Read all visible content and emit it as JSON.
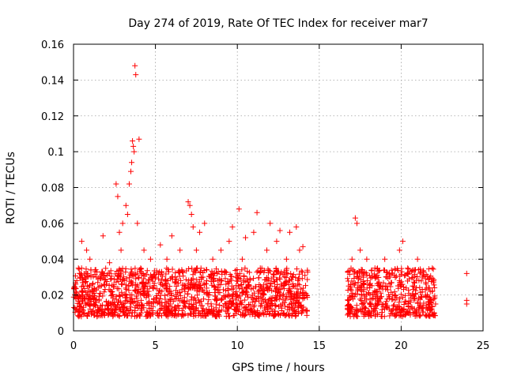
{
  "chart_data": {
    "type": "scatter",
    "title": "Day 274 of 2019, Rate Of TEC Index for receiver mar7",
    "xlabel": "GPS time / hours",
    "ylabel": "ROTI / TECUs",
    "xlim": [
      0,
      25
    ],
    "ylim": [
      0,
      0.16
    ],
    "x_ticks": [
      0,
      5,
      10,
      15,
      20,
      25
    ],
    "x_tick_labels": [
      "0",
      "5",
      "10",
      "15",
      "20",
      "25"
    ],
    "y_ticks": [
      0,
      0.02,
      0.04,
      0.06,
      0.08,
      0.1,
      0.12,
      0.14,
      0.16
    ],
    "y_tick_labels": [
      "0",
      "0.02",
      "0.04",
      "0.06",
      "0.08",
      "0.1",
      "0.12",
      "0.14",
      "0.16"
    ],
    "grid": true,
    "marker": "+",
    "color": "#ff0000",
    "series": [
      {
        "name": "ROTI",
        "note": "dense band of points, representative samples",
        "points": [
          [
            0.1,
            0.02
          ],
          [
            0.2,
            0.028
          ],
          [
            0.3,
            0.035
          ],
          [
            0.4,
            0.015
          ],
          [
            0.5,
            0.05
          ],
          [
            0.6,
            0.025
          ],
          [
            0.8,
            0.045
          ],
          [
            0.9,
            0.018
          ],
          [
            1.0,
            0.04
          ],
          [
            1.2,
            0.022
          ],
          [
            1.4,
            0.03
          ],
          [
            1.6,
            0.012
          ],
          [
            1.8,
            0.053
          ],
          [
            2.0,
            0.026
          ],
          [
            2.2,
            0.038
          ],
          [
            2.4,
            0.02
          ],
          [
            2.6,
            0.082
          ],
          [
            2.7,
            0.075
          ],
          [
            2.8,
            0.055
          ],
          [
            2.9,
            0.045
          ],
          [
            3.0,
            0.06
          ],
          [
            3.1,
            0.028
          ],
          [
            3.2,
            0.07
          ],
          [
            3.3,
            0.065
          ],
          [
            3.4,
            0.082
          ],
          [
            3.5,
            0.089
          ],
          [
            3.55,
            0.094
          ],
          [
            3.6,
            0.106
          ],
          [
            3.65,
            0.103
          ],
          [
            3.7,
            0.1
          ],
          [
            3.75,
            0.148
          ],
          [
            3.8,
            0.143
          ],
          [
            3.9,
            0.06
          ],
          [
            4.0,
            0.107
          ],
          [
            4.1,
            0.035
          ],
          [
            4.3,
            0.045
          ],
          [
            4.5,
            0.022
          ],
          [
            4.7,
            0.04
          ],
          [
            4.9,
            0.018
          ],
          [
            5.0,
            0.03
          ],
          [
            5.3,
            0.048
          ],
          [
            5.5,
            0.025
          ],
          [
            5.7,
            0.04
          ],
          [
            5.9,
            0.015
          ],
          [
            6.0,
            0.053
          ],
          [
            6.2,
            0.03
          ],
          [
            6.5,
            0.045
          ],
          [
            6.8,
            0.022
          ],
          [
            7.0,
            0.072
          ],
          [
            7.1,
            0.07
          ],
          [
            7.2,
            0.065
          ],
          [
            7.3,
            0.058
          ],
          [
            7.5,
            0.045
          ],
          [
            7.7,
            0.055
          ],
          [
            7.9,
            0.03
          ],
          [
            8.0,
            0.06
          ],
          [
            8.3,
            0.02
          ],
          [
            8.5,
            0.04
          ],
          [
            8.8,
            0.028
          ],
          [
            9.0,
            0.045
          ],
          [
            9.3,
            0.015
          ],
          [
            9.5,
            0.05
          ],
          [
            9.7,
            0.058
          ],
          [
            9.9,
            0.03
          ],
          [
            10.1,
            0.068
          ],
          [
            10.3,
            0.04
          ],
          [
            10.5,
            0.052
          ],
          [
            10.7,
            0.025
          ],
          [
            11.0,
            0.055
          ],
          [
            11.2,
            0.066
          ],
          [
            11.4,
            0.035
          ],
          [
            11.6,
            0.02
          ],
          [
            11.8,
            0.045
          ],
          [
            12.0,
            0.06
          ],
          [
            12.2,
            0.03
          ],
          [
            12.4,
            0.05
          ],
          [
            12.6,
            0.056
          ],
          [
            12.8,
            0.025
          ],
          [
            13.0,
            0.04
          ],
          [
            13.2,
            0.055
          ],
          [
            13.4,
            0.03
          ],
          [
            13.6,
            0.058
          ],
          [
            13.8,
            0.045
          ],
          [
            14.0,
            0.047
          ],
          [
            14.2,
            0.02
          ],
          [
            16.8,
            0.025
          ],
          [
            17.0,
            0.04
          ],
          [
            17.2,
            0.063
          ],
          [
            17.3,
            0.06
          ],
          [
            17.5,
            0.045
          ],
          [
            17.7,
            0.03
          ],
          [
            17.9,
            0.04
          ],
          [
            18.1,
            0.02
          ],
          [
            18.4,
            0.035
          ],
          [
            18.7,
            0.025
          ],
          [
            19.0,
            0.04
          ],
          [
            19.3,
            0.03
          ],
          [
            19.6,
            0.02
          ],
          [
            19.9,
            0.045
          ],
          [
            20.1,
            0.05
          ],
          [
            20.4,
            0.035
          ],
          [
            20.7,
            0.025
          ],
          [
            21.0,
            0.04
          ],
          [
            21.3,
            0.03
          ],
          [
            21.6,
            0.02
          ],
          [
            21.9,
            0.035
          ],
          [
            22.1,
            0.015
          ],
          [
            24.0,
            0.032
          ],
          [
            24.0,
            0.017
          ],
          [
            24.0,
            0.015
          ]
        ],
        "segments": [
          {
            "start": 0.0,
            "end": 14.3,
            "y_min": 0.008,
            "y_max": 0.035
          },
          {
            "start": 16.7,
            "end": 22.1,
            "y_min": 0.008,
            "y_max": 0.035
          }
        ]
      }
    ]
  }
}
